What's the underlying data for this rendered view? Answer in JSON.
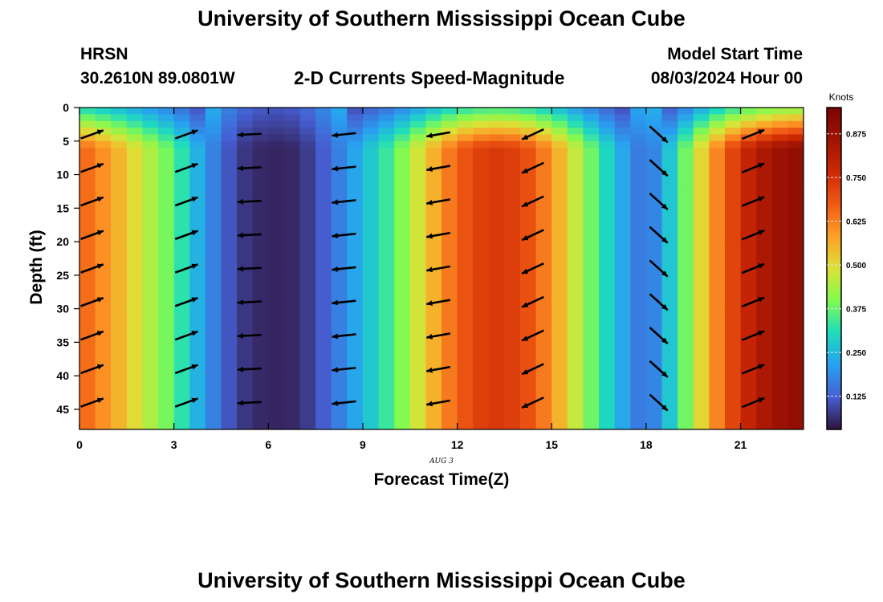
{
  "titles": {
    "top": "University of Southern Mississippi Ocean Cube",
    "bottom": "University of Southern Mississippi Ocean Cube"
  },
  "header": {
    "station": "HRSN",
    "coords": "30.2610N  89.0801W",
    "plot_title": "2-D Currents Speed-Magnitude",
    "model_start_label": "Model Start Time",
    "model_start_value": "08/03/2024 Hour 00"
  },
  "chart_data": {
    "type": "heatmap",
    "title": "2-D Currents Speed-Magnitude",
    "xlabel": "Forecast Time(Z)",
    "ylabel": "Depth (ft)",
    "date_label": "AUG 3",
    "xlim": [
      0,
      23
    ],
    "ylim": [
      0,
      48
    ],
    "x_ticks": [
      0,
      3,
      6,
      9,
      12,
      15,
      18,
      21
    ],
    "y_ticks": [
      0,
      5,
      10,
      15,
      20,
      25,
      30,
      35,
      40,
      45
    ],
    "colorbar": {
      "label": "Knots",
      "min": 0.03,
      "max": 0.95,
      "ticks": [
        "0.125",
        "0.250",
        "0.375",
        "0.500",
        "0.625",
        "0.750",
        "0.875"
      ],
      "tick_values": [
        0.125,
        0.25,
        0.375,
        0.5,
        0.625,
        0.75,
        0.875
      ]
    },
    "hour_speed_knots": [
      0.67,
      0.58,
      0.47,
      0.36,
      0.2,
      0.08,
      0.05,
      0.06,
      0.14,
      0.25,
      0.36,
      0.52,
      0.67,
      0.74,
      0.72,
      0.6,
      0.42,
      0.26,
      0.13,
      0.32,
      0.57,
      0.76,
      0.86,
      0.9
    ],
    "vector_depths_ft": [
      4,
      9,
      14,
      19,
      24,
      29,
      34,
      39,
      44
    ],
    "vectors": [
      {
        "hour": 0.4,
        "speed": 0.62,
        "angle_deg": 20
      },
      {
        "hour": 3.4,
        "speed": 0.28,
        "angle_deg": 20
      },
      {
        "hour": 5.4,
        "speed": 0.12,
        "angle_deg": 183
      },
      {
        "hour": 8.4,
        "speed": 0.4,
        "angle_deg": 186
      },
      {
        "hour": 11.4,
        "speed": 0.6,
        "angle_deg": 190
      },
      {
        "hour": 14.4,
        "speed": 0.55,
        "angle_deg": 205
      },
      {
        "hour": 18.4,
        "speed": 0.25,
        "angle_deg": 318
      },
      {
        "hour": 21.4,
        "speed": 0.75,
        "angle_deg": 22
      }
    ]
  }
}
